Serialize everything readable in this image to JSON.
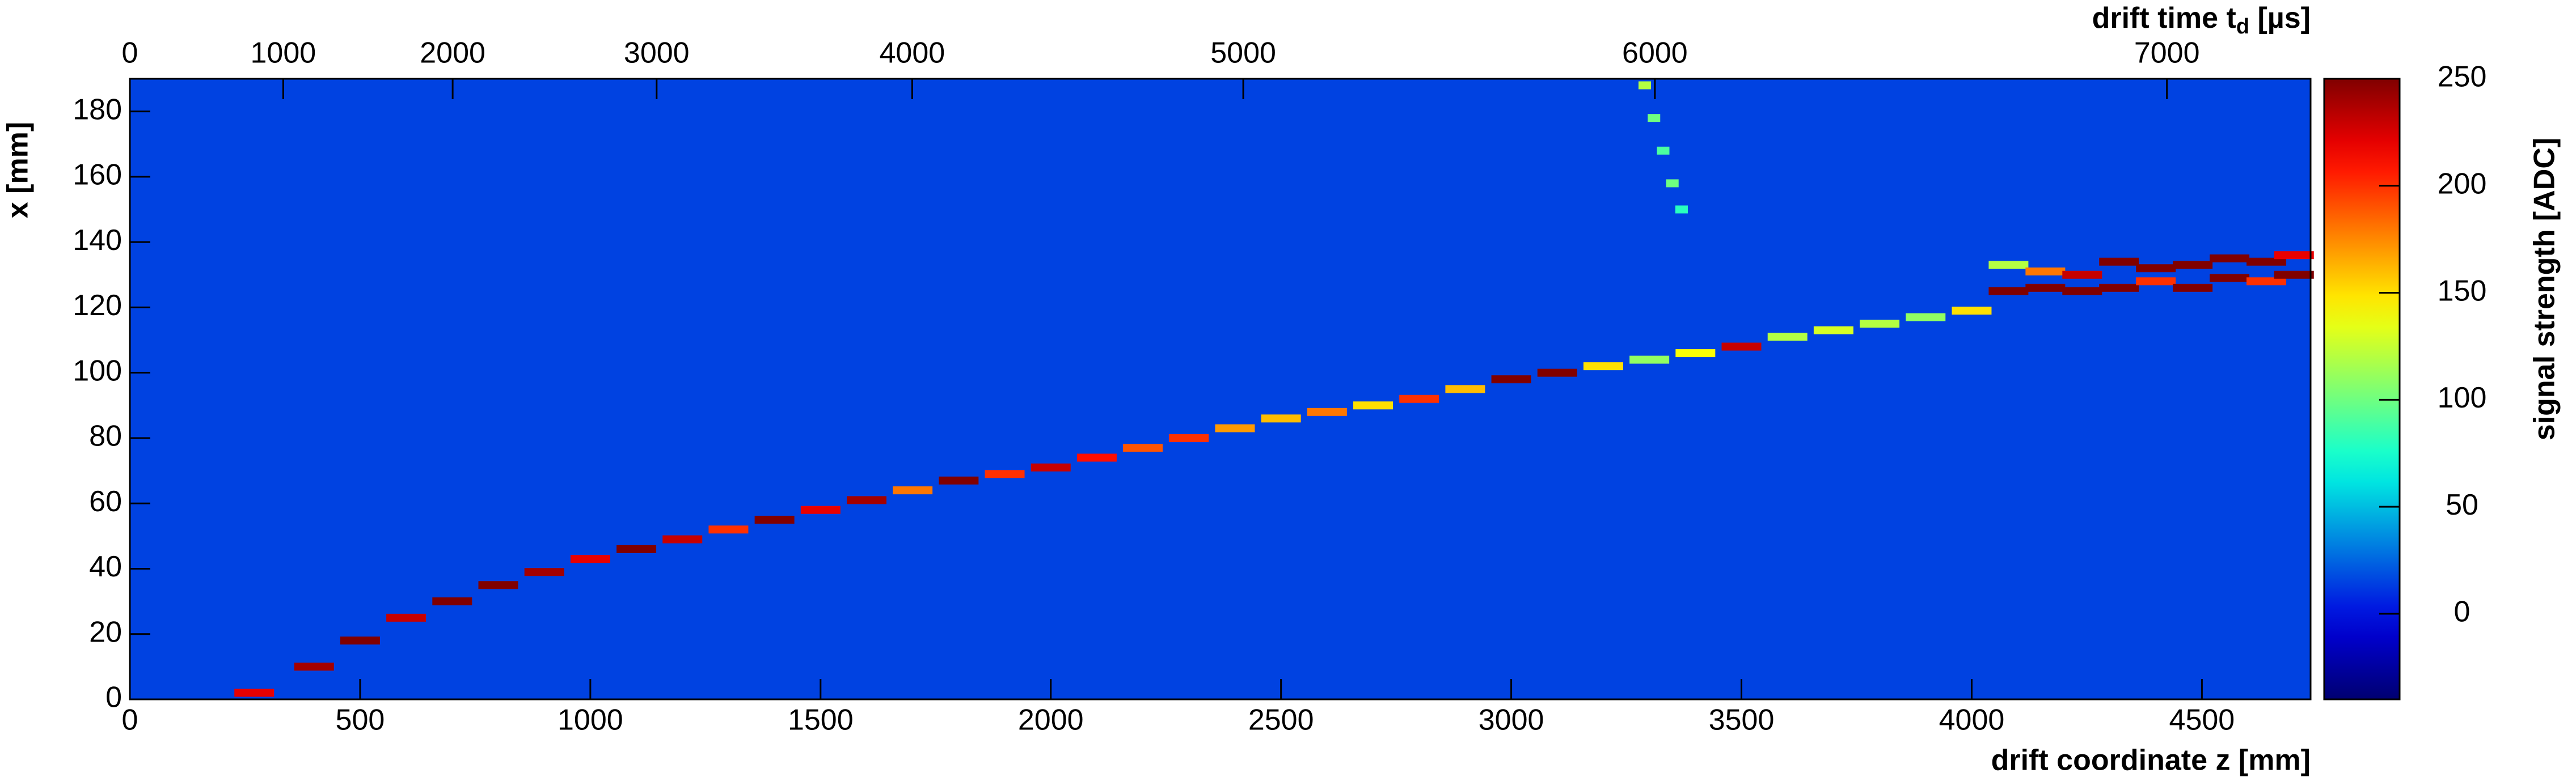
{
  "chart_data": {
    "type": "heatmap",
    "xlabel": "drift coordinate z [mm]",
    "ylabel": "x [mm]",
    "x2label_parts": [
      "drift time t",
      "d",
      " [µs]"
    ],
    "zlabel": "signal strength [ADC]",
    "xlim": [
      0,
      4736
    ],
    "xticks": [
      0,
      500,
      1000,
      1500,
      2000,
      2500,
      3000,
      3500,
      4000,
      4500
    ],
    "ylim": [
      0,
      190
    ],
    "yticks": [
      0,
      20,
      40,
      60,
      80,
      100,
      120,
      140,
      160,
      180
    ],
    "x2ticks": [
      0,
      1000,
      2000,
      3000,
      4000,
      5000,
      6000,
      7000
    ],
    "x2tick_z": [
      0,
      333,
      701,
      1144,
      1699,
      2418,
      3312,
      4424
    ],
    "zlim": [
      -40,
      250
    ],
    "zticks": [
      0,
      50,
      100,
      150,
      200,
      250
    ],
    "background_value": 15,
    "cells": {
      "z": [
        270,
        400,
        500,
        600,
        700,
        800,
        900,
        1000,
        1100,
        1200,
        1300,
        1400,
        1500,
        1600,
        1700,
        1800,
        1900,
        2000,
        2100,
        2200,
        2300,
        2400,
        2500,
        2600,
        2700,
        2800,
        2900,
        3000,
        3100,
        3200,
        3300,
        3400,
        3500,
        3600,
        3700,
        3800,
        3900,
        4000,
        4080,
        4080,
        4160,
        4160,
        4240,
        4240,
        4320,
        4320,
        4400,
        4400,
        4480,
        4480,
        4560,
        4560,
        4640,
        4640,
        4700,
        4700,
        3290,
        3310,
        3330,
        3350,
        3370
      ],
      "x": [
        2,
        10,
        18,
        25,
        30,
        35,
        39,
        43,
        46,
        49,
        52,
        55,
        58,
        61,
        64,
        67,
        69,
        71,
        74,
        77,
        80,
        83,
        86,
        88,
        90,
        92,
        95,
        98,
        100,
        102,
        104,
        106,
        108,
        111,
        113,
        115,
        117,
        119,
        125,
        133,
        126,
        131,
        125,
        130,
        126,
        134,
        128,
        132,
        126,
        133,
        129,
        135,
        128,
        134,
        130,
        136,
        188,
        178,
        168,
        158,
        150
      ],
      "values": [
        220,
        240,
        250,
        230,
        250,
        250,
        240,
        220,
        250,
        230,
        200,
        250,
        220,
        240,
        180,
        250,
        200,
        230,
        210,
        190,
        200,
        170,
        160,
        180,
        150,
        200,
        160,
        250,
        250,
        150,
        110,
        140,
        230,
        120,
        130,
        120,
        110,
        150,
        250,
        120,
        250,
        180,
        250,
        230,
        250,
        250,
        200,
        250,
        250,
        250,
        250,
        250,
        200,
        250,
        250,
        220,
        120,
        100,
        90,
        100,
        80
      ]
    }
  }
}
